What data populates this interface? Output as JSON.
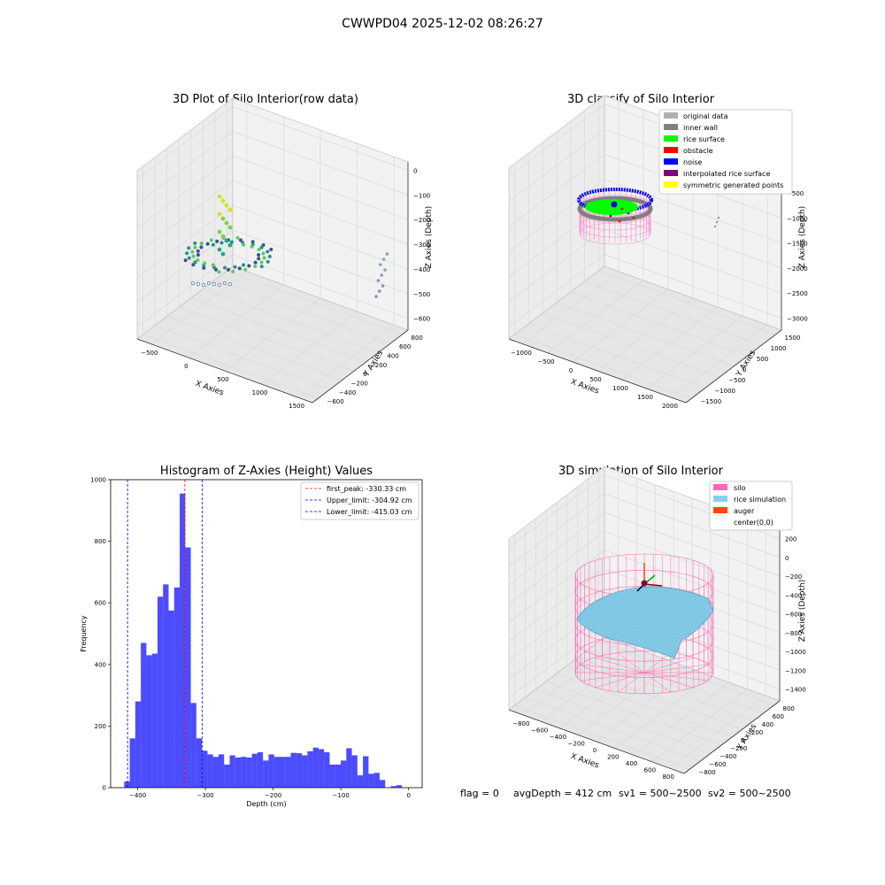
{
  "figure": {
    "suptitle": "CWWPD04 2025-12-02 08:26:27"
  },
  "status": {
    "flag": "flag = 0",
    "avg_depth": "avgDepth = 412 cm",
    "sv1": "sv1 = 500~2500",
    "sv2": "sv2 = 500~2500"
  },
  "chart_data": [
    {
      "type": "scatter",
      "title": "3D Plot of Silo Interior(row data)",
      "xlabel": "X Axies",
      "ylabel": "Y Axies",
      "zlabel": "Z Axies (Depth)",
      "x_ticks": [
        "−500",
        "0",
        "500",
        "1000",
        "1500"
      ],
      "y_ticks": [
        "−600",
        "−400",
        "−200",
        "0",
        "200",
        "400",
        "600",
        "800"
      ],
      "z_ticks": [
        "0",
        "−100",
        "−200",
        "−300",
        "−400",
        "−500",
        "−600"
      ],
      "xlim": [
        -600,
        1800
      ],
      "ylim": [
        -650,
        850
      ],
      "zlim": [
        -680,
        20
      ],
      "colormap": "viridis",
      "grid": true
    },
    {
      "type": "scatter",
      "title": "3D classify of Silo Interior",
      "xlabel": "X Axies",
      "ylabel": "Y Axies",
      "zlabel": "Z Axies (Depth)",
      "x_ticks": [
        "−1000",
        "−500",
        "0",
        "500",
        "1000",
        "1500",
        "2000"
      ],
      "y_ticks": [
        "−1500",
        "−1000",
        "−500",
        "0",
        "500",
        "1000",
        "1500"
      ],
      "z_ticks": [
        "0",
        "−500",
        "−1000",
        "−1500",
        "−2000",
        "−2500",
        "−3000"
      ],
      "legend": {
        "placement": "top-right",
        "entries": [
          {
            "label": "original data",
            "color": "#b0b0b0"
          },
          {
            "label": "inner wall",
            "color": "#808080"
          },
          {
            "label": "rice surface",
            "color": "#00ff00"
          },
          {
            "label": "obstacle",
            "color": "#ff0000"
          },
          {
            "label": "noise",
            "color": "#0000ff"
          },
          {
            "label": "interpolated rice surface",
            "color": "#800080"
          },
          {
            "label": "symmetric generated points",
            "color": "#ffff00"
          }
        ]
      },
      "grid": true
    },
    {
      "type": "bar",
      "title": "Histogram of Z-Axies (Height) Values",
      "xlabel": "Depth (cm)",
      "ylabel": "Frequency",
      "xlim": [
        -440,
        20
      ],
      "ylim": [
        0,
        1000
      ],
      "x_ticks": [
        -400,
        -300,
        -200,
        -100,
        0
      ],
      "y_ticks": [
        0,
        200,
        400,
        600,
        800,
        1000
      ],
      "bar_color": "#0000ff",
      "bins": {
        "start": -420,
        "width": 8.2,
        "values": [
          20,
          160,
          280,
          470,
          430,
          435,
          620,
          660,
          575,
          650,
          955,
          780,
          275,
          160,
          120,
          108,
          100,
          108,
          75,
          105,
          98,
          100,
          98,
          110,
          115,
          88,
          108,
          100,
          100,
          100,
          113,
          112,
          105,
          118,
          130,
          125,
          115,
          75,
          75,
          88,
          128,
          105,
          40,
          102,
          45,
          48,
          25,
          0,
          5,
          8
        ]
      },
      "vlines": [
        {
          "label": "first_peak: -330.33 cm",
          "x": -330.33,
          "color": "#ff0000"
        },
        {
          "label": "Upper_limit: -304.92 cm",
          "x": -304.92,
          "color": "#0000ff"
        },
        {
          "label": "Lower_limit: -415.03 cm",
          "x": -415.03,
          "color": "#0000aa"
        }
      ],
      "legend": {
        "placement": "top-right"
      }
    },
    {
      "type": "scatter",
      "title": "3D simulation of Silo Interior",
      "xlabel": "X Axies",
      "ylabel": "Y Axies",
      "zlabel": "Z Axies (Depth)",
      "x_ticks": [
        "−800",
        "−600",
        "−400",
        "−200",
        "0",
        "200",
        "400",
        "600",
        "800"
      ],
      "y_ticks": [
        "−800",
        "−600",
        "−400",
        "−200",
        "0",
        "200",
        "400",
        "600",
        "800"
      ],
      "z_ticks": [
        "200",
        "0",
        "−200",
        "−400",
        "−600",
        "−800",
        "−1000",
        "−1200",
        "−1400"
      ],
      "legend": {
        "placement": "top-right",
        "entries": [
          {
            "label": "silo",
            "color": "#ff69b4"
          },
          {
            "label": "rice simulation",
            "color": "#87ceeb"
          },
          {
            "label": "auger",
            "color": "#ff4500"
          },
          {
            "label": "center(0,0)",
            "color": "#ffffff"
          }
        ]
      },
      "grid": true
    }
  ]
}
